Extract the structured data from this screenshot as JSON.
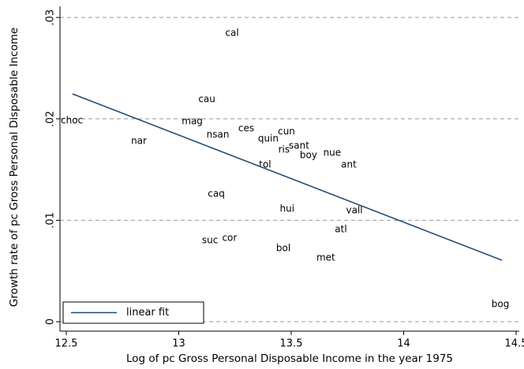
{
  "chart_data": {
    "type": "scatter",
    "x_label": "Log of pc Gross Personal Disposable Income in the year 1975",
    "y_label": "Growth rate of pc Gross Personal Disposable Income",
    "xlim": [
      12.472,
      14.514
    ],
    "ylim": [
      -0.00093,
      0.0311
    ],
    "xticks": [
      12.5,
      13,
      13.5,
      14,
      14.5
    ],
    "yticks": [
      0,
      {
        "value": 0.01,
        "label": ".01"
      },
      {
        "value": 0.02,
        "label": ".02"
      },
      {
        "value": 0.03,
        "label": ".03"
      }
    ],
    "grid": true,
    "legend_position": "bottom-left",
    "series": [
      {
        "type": "scatter",
        "color": "#000000",
        "point_labels": [
          "cal",
          "cau",
          "choc",
          "mag",
          "nar",
          "nsan",
          "ces",
          "quin",
          "cun",
          "ris",
          "sant",
          "boy",
          "nue",
          "ant",
          "tol",
          "caq",
          "hui",
          "vall",
          "atl",
          "suc",
          "cor",
          "bol",
          "met",
          "bog"
        ],
        "x": [
          13.237,
          13.125,
          12.525,
          13.06,
          12.823,
          13.174,
          13.3,
          13.398,
          13.479,
          13.468,
          13.535,
          13.577,
          13.682,
          13.756,
          13.384,
          13.167,
          13.482,
          13.781,
          13.721,
          13.139,
          13.226,
          13.465,
          13.654,
          14.43
        ],
        "values": [
          0.02844,
          0.02191,
          0.01981,
          0.01974,
          0.01779,
          0.01841,
          0.01904,
          0.01803,
          0.01873,
          0.01694,
          0.01733,
          0.01639,
          0.01663,
          0.01546,
          0.01546,
          0.01259,
          0.01111,
          0.01096,
          0.00909,
          0.008,
          0.00824,
          0.00723,
          0.00629,
          0.00171
        ]
      },
      {
        "type": "line",
        "name": "linear fit",
        "color": "#1a476f",
        "x": [
          12.528,
          14.437
        ],
        "values": [
          0.02246,
          0.00606
        ]
      }
    ]
  }
}
